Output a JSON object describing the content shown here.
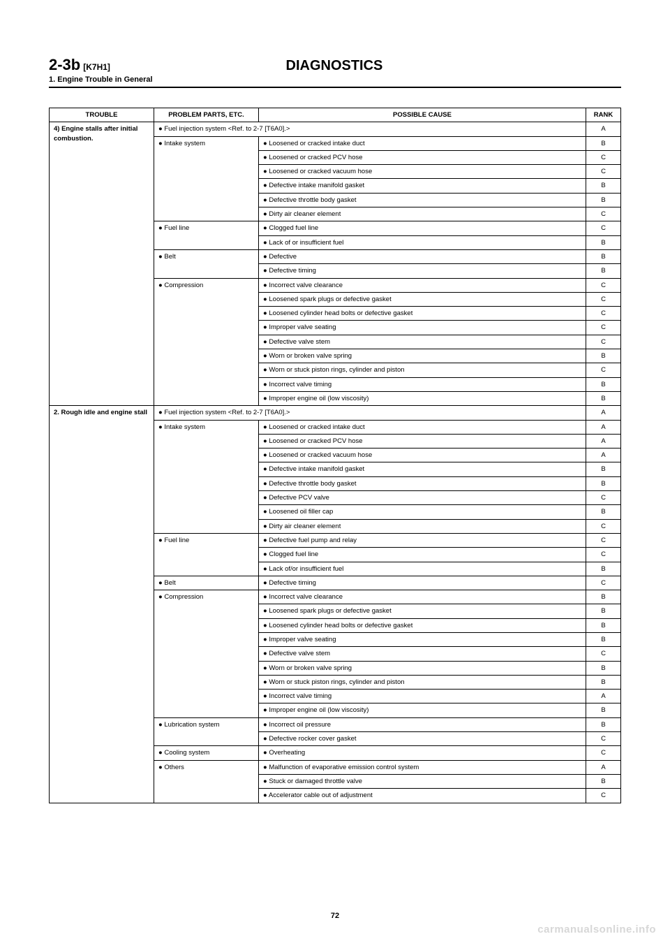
{
  "header": {
    "section_code": "2-3b",
    "section_sub": "[K7H1]",
    "title": "DIAGNOSTICS",
    "subsection": "1.  Engine Trouble in General"
  },
  "table": {
    "headers": {
      "trouble": "TROUBLE",
      "problem": "PROBLEM PARTS, ETC.",
      "cause": "POSSIBLE CAUSE",
      "rank": "RANK"
    },
    "troubles": [
      {
        "label": "4) Engine stalls after initial combustion.",
        "groups": [
          {
            "problem": "● Fuel injection system <Ref. to 2-7 [T6A0].>",
            "span_cause": true,
            "rank": "A"
          },
          {
            "problem": "● Intake system",
            "rows": [
              {
                "cause": "● Loosened or cracked intake duct",
                "rank": "B"
              },
              {
                "cause": "● Loosened or cracked PCV hose",
                "rank": "C"
              },
              {
                "cause": "● Loosened or cracked vacuum hose",
                "rank": "C"
              },
              {
                "cause": "● Defective intake manifold gasket",
                "rank": "B"
              },
              {
                "cause": "● Defective throttle body gasket",
                "rank": "B"
              },
              {
                "cause": "● Dirty air cleaner element",
                "rank": "C"
              }
            ]
          },
          {
            "problem": "● Fuel line",
            "rows": [
              {
                "cause": "● Clogged fuel line",
                "rank": "C"
              },
              {
                "cause": "● Lack of or insufficient fuel",
                "rank": "B"
              }
            ]
          },
          {
            "problem": "● Belt",
            "rows": [
              {
                "cause": "● Defective",
                "rank": "B"
              },
              {
                "cause": "● Defective timing",
                "rank": "B"
              }
            ]
          },
          {
            "problem": "● Compression",
            "rows": [
              {
                "cause": "● Incorrect valve clearance",
                "rank": "C"
              },
              {
                "cause": "● Loosened spark plugs or defective gasket",
                "rank": "C"
              },
              {
                "cause": "● Loosened cylinder head bolts or defective gasket",
                "rank": "C"
              },
              {
                "cause": "● Improper valve seating",
                "rank": "C"
              },
              {
                "cause": "● Defective valve stem",
                "rank": "C"
              },
              {
                "cause": "● Worn or broken valve spring",
                "rank": "B"
              },
              {
                "cause": "● Worn or stuck piston rings, cylinder and piston",
                "rank": "C"
              },
              {
                "cause": "● Incorrect valve timing",
                "rank": "B"
              },
              {
                "cause": "● Improper engine oil (low viscosity)",
                "rank": "B"
              }
            ]
          }
        ]
      },
      {
        "label": "2. Rough idle and engine stall",
        "groups": [
          {
            "problem": "● Fuel injection system <Ref. to 2-7 [T6A0].>",
            "span_cause": true,
            "rank": "A"
          },
          {
            "problem": "● Intake system",
            "rows": [
              {
                "cause": "● Loosened or cracked intake duct",
                "rank": "A"
              },
              {
                "cause": "● Loosened or cracked PCV hose",
                "rank": "A"
              },
              {
                "cause": "● Loosened or cracked vacuum hose",
                "rank": "A"
              },
              {
                "cause": "● Defective intake manifold gasket",
                "rank": "B"
              },
              {
                "cause": "● Defective throttle body gasket",
                "rank": "B"
              },
              {
                "cause": "● Defective PCV valve",
                "rank": "C"
              },
              {
                "cause": "● Loosened oil filler cap",
                "rank": "B"
              },
              {
                "cause": "● Dirty air cleaner element",
                "rank": "C"
              }
            ]
          },
          {
            "problem": "● Fuel line",
            "rows": [
              {
                "cause": "● Defective fuel pump and relay",
                "rank": "C"
              },
              {
                "cause": "● Clogged fuel line",
                "rank": "C"
              },
              {
                "cause": "● Lack of/or insufficient fuel",
                "rank": "B"
              }
            ]
          },
          {
            "problem": "● Belt",
            "rows": [
              {
                "cause": "● Defective timing",
                "rank": "C"
              }
            ]
          },
          {
            "problem": "● Compression",
            "rows": [
              {
                "cause": "● Incorrect valve clearance",
                "rank": "B"
              },
              {
                "cause": "● Loosened spark plugs or defective gasket",
                "rank": "B"
              },
              {
                "cause": "● Loosened cylinder head bolts or defective gasket",
                "rank": "B"
              },
              {
                "cause": "● Improper valve seating",
                "rank": "B"
              },
              {
                "cause": "● Defective valve stem",
                "rank": "C"
              },
              {
                "cause": "● Worn or broken valve spring",
                "rank": "B"
              },
              {
                "cause": "● Worn or stuck piston rings, cylinder and piston",
                "rank": "B"
              },
              {
                "cause": "● Incorrect valve timing",
                "rank": "A"
              },
              {
                "cause": "● Improper engine oil (low viscosity)",
                "rank": "B"
              }
            ]
          },
          {
            "problem": "● Lubrication system",
            "rows": [
              {
                "cause": "● Incorrect oil pressure",
                "rank": "B"
              },
              {
                "cause": "● Defective rocker cover gasket",
                "rank": "C"
              }
            ]
          },
          {
            "problem": "● Cooling system",
            "rows": [
              {
                "cause": "● Overheating",
                "rank": "C"
              }
            ]
          },
          {
            "problem": "● Others",
            "rows": [
              {
                "cause": "● Malfunction of evaporative emission control system",
                "rank": "A"
              },
              {
                "cause": "● Stuck or damaged throttle valve",
                "rank": "B"
              },
              {
                "cause": "● Accelerator cable out of adjustment",
                "rank": "C"
              }
            ]
          }
        ]
      }
    ]
  },
  "footer": {
    "page_number": "72",
    "watermark": "carmanualsonline.info"
  }
}
